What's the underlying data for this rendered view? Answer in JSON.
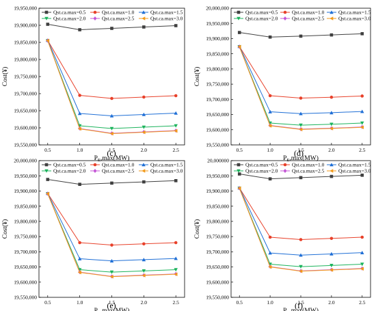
{
  "chart_data": [
    {
      "type": "line",
      "panel_label": "(c)",
      "xlabel": "P",
      "xlabel_sub": "E",
      "xlabel_suffix": ",max(MW)",
      "ylabel": "Cost(¥)",
      "x": [
        0.5,
        1.0,
        1.5,
        2.0,
        2.5
      ],
      "x_ticks": [
        "0.5",
        "1.0",
        "1.5",
        "2.0",
        "2.5"
      ],
      "ylim": [
        19550000,
        19950000
      ],
      "y_ticks": [
        "19,550,000",
        "19,600,000",
        "19,650,000",
        "19,700,000",
        "19,750,000",
        "19,800,000",
        "19,850,000",
        "19,900,000",
        "19,950,000"
      ],
      "y_tick_values": [
        19550000,
        19600000,
        19650000,
        19700000,
        19750000,
        19800000,
        19850000,
        19900000,
        19950000
      ],
      "legend": "top",
      "series": [
        {
          "name": "Qst.ca.max=0.5",
          "values": [
            19903000,
            19887000,
            19891000,
            19895000,
            19899000
          ]
        },
        {
          "name": "Qst.ca.max=1.0",
          "values": [
            19856000,
            19695000,
            19686000,
            19690000,
            19694000
          ]
        },
        {
          "name": "Qst.ca.max=1.5",
          "values": [
            19856000,
            19642000,
            19635000,
            19639000,
            19643000
          ]
        },
        {
          "name": "Qst.ca.max=2.0",
          "values": [
            19855000,
            19606000,
            19598000,
            19602000,
            19606000
          ]
        },
        {
          "name": "Qst.ca.max=2.5",
          "values": [
            19855000,
            19598000,
            19584000,
            19588000,
            19592000
          ]
        },
        {
          "name": "Qst.ca.max=3.0",
          "values": [
            19855000,
            19597000,
            19583000,
            19587000,
            19591000
          ]
        }
      ]
    },
    {
      "type": "line",
      "panel_label": "(d)",
      "xlabel": "P",
      "xlabel_sub": "E",
      "xlabel_suffix": ",max(MW)",
      "ylabel": "Cost(¥)",
      "x": [
        0.5,
        1.0,
        1.5,
        2.0,
        2.5
      ],
      "x_ticks": [
        "0.5",
        "1.0",
        "1.5",
        "2.0",
        "2.5"
      ],
      "ylim": [
        19550000,
        20000000
      ],
      "y_ticks": [
        "19,550,000",
        "19,600,000",
        "19,650,000",
        "19,700,000",
        "19,750,000",
        "19,800,000",
        "19,850,000",
        "19,900,000",
        "19,950,000",
        "20,000,000"
      ],
      "y_tick_values": [
        19550000,
        19600000,
        19650000,
        19700000,
        19750000,
        19800000,
        19850000,
        19900000,
        19950000,
        20000000
      ],
      "legend": "top",
      "series": [
        {
          "name": "Qst.ca.max=0.5",
          "values": [
            19920000,
            19905000,
            19908000,
            19912000,
            19916000
          ]
        },
        {
          "name": "Qst.ca.max=1.0",
          "values": [
            19874000,
            19712000,
            19704000,
            19707000,
            19711000
          ]
        },
        {
          "name": "Qst.ca.max=1.5",
          "values": [
            19874000,
            19659000,
            19653000,
            19656000,
            19660000
          ]
        },
        {
          "name": "Qst.ca.max=2.0",
          "values": [
            19873000,
            19622000,
            19615000,
            19618000,
            19622000
          ]
        },
        {
          "name": "Qst.ca.max=2.5",
          "values": [
            19873000,
            19614000,
            19602000,
            19605000,
            19609000
          ]
        },
        {
          "name": "Qst.ca.max=3.0",
          "values": [
            19873000,
            19613000,
            19601000,
            19604000,
            19608000
          ]
        }
      ]
    },
    {
      "type": "line",
      "panel_label": "(e)",
      "xlabel": "P",
      "xlabel_sub": "E",
      "xlabel_suffix": ",max(MW)",
      "ylabel": "Cost(¥)",
      "x": [
        0.5,
        1.0,
        1.5,
        2.0,
        2.5
      ],
      "x_ticks": [
        "0.5",
        "1.0",
        "1.5",
        "2.0",
        "2.5"
      ],
      "ylim": [
        19550000,
        20000000
      ],
      "y_ticks": [
        "19,550,000",
        "19,600,000",
        "19,650,000",
        "19,700,000",
        "19,750,000",
        "19,800,000",
        "19,850,000",
        "19,900,000",
        "19,950,000",
        "20,000,000"
      ],
      "y_tick_values": [
        19550000,
        19600000,
        19650000,
        19700000,
        19750000,
        19800000,
        19850000,
        19900000,
        19950000,
        20000000
      ],
      "legend": "top",
      "series": [
        {
          "name": "Qst.ca.max=0.5",
          "values": [
            19938000,
            19922000,
            19926000,
            19930000,
            19934000
          ]
        },
        {
          "name": "Qst.ca.max=1.0",
          "values": [
            19892000,
            19730000,
            19722000,
            19726000,
            19730000
          ]
        },
        {
          "name": "Qst.ca.max=1.5",
          "values": [
            19892000,
            19677000,
            19670000,
            19674000,
            19678000
          ]
        },
        {
          "name": "Qst.ca.max=2.0",
          "values": [
            19891000,
            19641000,
            19633000,
            19637000,
            19641000
          ]
        },
        {
          "name": "Qst.ca.max=2.5",
          "values": [
            19891000,
            19633000,
            19619000,
            19623000,
            19627000
          ]
        },
        {
          "name": "Qst.ca.max=3.0",
          "values": [
            19891000,
            19632000,
            19618000,
            19622000,
            19626000
          ]
        }
      ]
    },
    {
      "type": "line",
      "panel_label": "(f)",
      "xlabel": "P",
      "xlabel_sub": "E",
      "xlabel_suffix": ",max(MW)",
      "ylabel": "Cost(¥)",
      "x": [
        0.5,
        1.0,
        1.5,
        2.0,
        2.5
      ],
      "x_ticks": [
        "0.5",
        "1.0",
        "1.5",
        "2.0",
        "2.5"
      ],
      "ylim": [
        19550000,
        20000000
      ],
      "y_ticks": [
        "19,550,000",
        "19,600,000",
        "19,650,000",
        "19,700,000",
        "19,750,000",
        "19,800,000",
        "19,850,000",
        "19,900,000",
        "19,950,000",
        "20,000000"
      ],
      "y_tick_values": [
        19550000,
        19600000,
        19650000,
        19700000,
        19750000,
        19800000,
        19850000,
        19900000,
        19950000,
        20000000
      ],
      "legend": "top",
      "series": [
        {
          "name": "Qst.ca.max=0.5",
          "values": [
            19956000,
            19940000,
            19944000,
            19948000,
            19952000
          ]
        },
        {
          "name": "Qst.ca.max=1.0",
          "values": [
            19910000,
            19748000,
            19740000,
            19744000,
            19748000
          ]
        },
        {
          "name": "Qst.ca.max=1.5",
          "values": [
            19910000,
            19696000,
            19689000,
            19693000,
            19697000
          ]
        },
        {
          "name": "Qst.ca.max=2.0",
          "values": [
            19909000,
            19659000,
            19651000,
            19655000,
            19659000
          ]
        },
        {
          "name": "Qst.ca.max=2.5",
          "values": [
            19909000,
            19651000,
            19637000,
            19641000,
            19645000
          ]
        },
        {
          "name": "Qst.ca.max=3.0",
          "values": [
            19909000,
            19650000,
            19636000,
            19640000,
            19644000
          ]
        }
      ]
    }
  ],
  "series_style": [
    {
      "color": "#404040",
      "marker": "square"
    },
    {
      "color": "#e8412a",
      "marker": "circle"
    },
    {
      "color": "#1f6fd6",
      "marker": "triangle-up"
    },
    {
      "color": "#1cb35c",
      "marker": "triangle-down"
    },
    {
      "color": "#c455d6",
      "marker": "diamond"
    },
    {
      "color": "#f29a1a",
      "marker": "triangle-left"
    }
  ]
}
